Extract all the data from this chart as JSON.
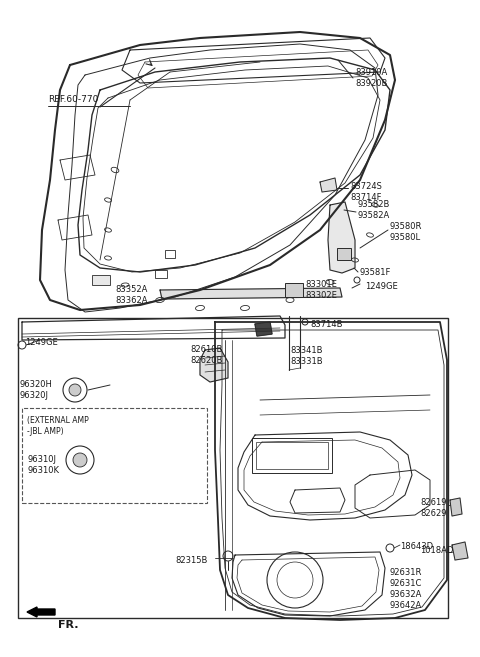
{
  "background_color": "#ffffff",
  "line_color": "#2a2a2a",
  "text_color": "#1a1a1a",
  "figsize": [
    4.8,
    6.57
  ],
  "dpi": 100,
  "labels": {
    "ref_60_770": "REF.60-770",
    "p83910": "83910A\n83920B",
    "p83724": "83724S\n83714F",
    "p93582": "93582B\n93582A",
    "p93580": "93580R\n93580L",
    "p93581": "93581F",
    "p83301": "83301E\n83302E",
    "p1249ge_top": "1249GE",
    "p83352": "83352A\n83362A",
    "p83714b": "83714B",
    "p1249ge_bot": "1249GE",
    "p82610": "82610B\n82620B",
    "p83341": "83341B\n83331B",
    "p96320": "96320H\n96320J",
    "ext_amp": "(EXTERNAL AMP\n-JBL AMP)",
    "p96310": "96310J\n96310K",
    "p18643": "18643D",
    "p82315": "82315B",
    "p92631": "92631R\n92631C\n93632A\n93642A",
    "p82619": "82619\n82629",
    "p1018ad": "1018AD",
    "fr": "FR."
  }
}
